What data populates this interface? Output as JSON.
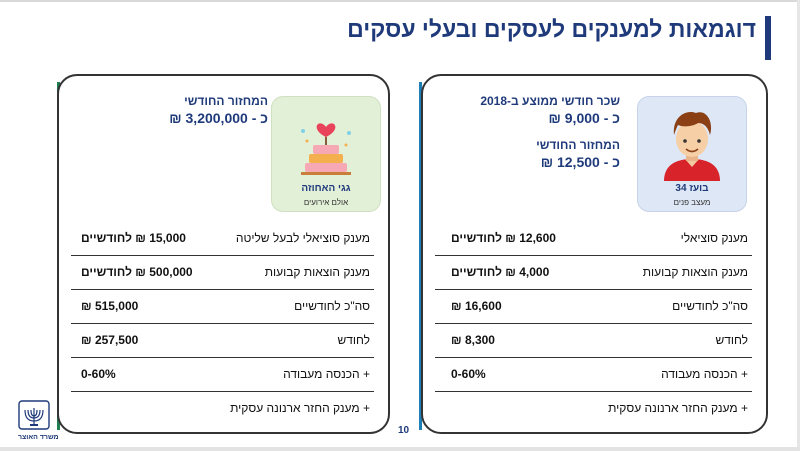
{
  "slide": {
    "title": "דוגמאות למענקים לעסקים ובעלי עסקים",
    "page_number": "10",
    "logo_text": "משרד האוצר"
  },
  "right_card": {
    "photo_name": "בועז 34",
    "photo_sub": "מעצב פנים",
    "info": [
      {
        "label": "שכר חודשי ממוצע ב-2018",
        "value": "כ - 9,000 ₪"
      },
      {
        "label": "המחזור החודשי",
        "value": "כ - 12,500 ₪"
      }
    ],
    "rows": [
      {
        "label": "מענק סוציאלי",
        "value": "12,600 ₪ לחודשיים"
      },
      {
        "label": "מענק הוצאות קבועות",
        "value": "4,000 ₪ לחודשיים"
      },
      {
        "label": "סה\"כ לחודשיים",
        "value": "16,600 ₪"
      },
      {
        "label": "לחודש",
        "value": "8,300 ₪"
      },
      {
        "label": "+  הכנסה מעבודה",
        "value": "0-60%"
      },
      {
        "label": "+  מענק החזר ארנונה עסקית",
        "value": ""
      }
    ]
  },
  "left_card": {
    "photo_name": "גגי האחוזה",
    "photo_sub": "אולם אירועים",
    "info": [
      {
        "label": "המחזור החודשי",
        "value": "כ - 3,200,000 ₪"
      }
    ],
    "rows": [
      {
        "label": "מענק סוציאלי לבעל שליטה",
        "value": "15,000 ₪ לחודשיים"
      },
      {
        "label": "מענק הוצאות קבועות",
        "value": "500,000 ₪ לחודשיים"
      },
      {
        "label": "סה\"כ לחודשיים",
        "value": "515,000 ₪"
      },
      {
        "label": "לחודש",
        "value": "257,500 ₪"
      },
      {
        "label": "+  הכנסה מעבודה",
        "value": "0-60%"
      },
      {
        "label": "+  מענק החזר ארנונה עסקית",
        "value": ""
      }
    ]
  },
  "colors": {
    "title_blue": "#1f3a7a",
    "green_accent": "#1f8f5b",
    "blue_accent": "#1e7fb8"
  }
}
